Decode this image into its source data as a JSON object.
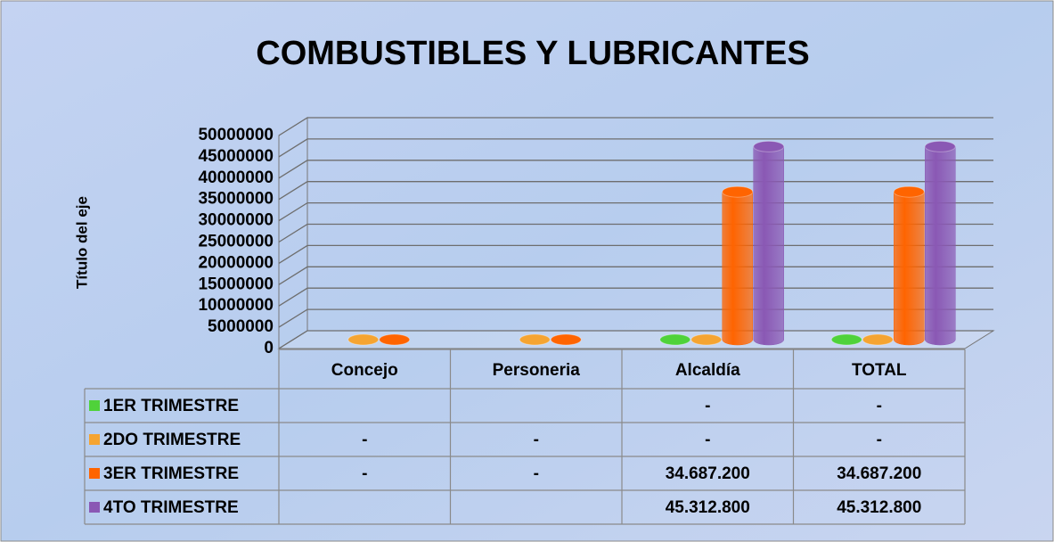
{
  "chart_data": {
    "type": "bar",
    "title": "COMBUSTIBLES Y LUBRICANTES",
    "y_label": "Título del eje",
    "categories": [
      "Concejo",
      "Personeria",
      "Alcaldía",
      "TOTAL"
    ],
    "series": [
      {
        "name": "1ER TRIMESTRE",
        "color": "#4fd23a",
        "values": [
          null,
          null,
          0,
          0
        ],
        "value_labels": [
          null,
          null,
          "-",
          "-"
        ]
      },
      {
        "name": "2DO TRIMESTRE",
        "color": "#f5a431",
        "values": [
          0,
          0,
          0,
          0
        ],
        "value_labels": [
          "-",
          "-",
          "-",
          "-"
        ]
      },
      {
        "name": "3ER TRIMESTRE",
        "color": "#ff6400",
        "values": [
          0,
          0,
          34687200,
          34687200
        ],
        "value_labels": [
          "-",
          "-",
          "34.687.200",
          "34.687.200"
        ]
      },
      {
        "name": "4TO TRIMESTRE",
        "color": "#8a58b4",
        "values": [
          null,
          null,
          45312800,
          45312800
        ],
        "value_labels": [
          null,
          null,
          "45.312.800",
          "45.312.800"
        ]
      }
    ],
    "ylim": [
      0,
      50000000
    ],
    "yticks": [
      0,
      5000000,
      10000000,
      15000000,
      20000000,
      25000000,
      30000000,
      35000000,
      40000000,
      45000000,
      50000000
    ],
    "grid": true
  }
}
